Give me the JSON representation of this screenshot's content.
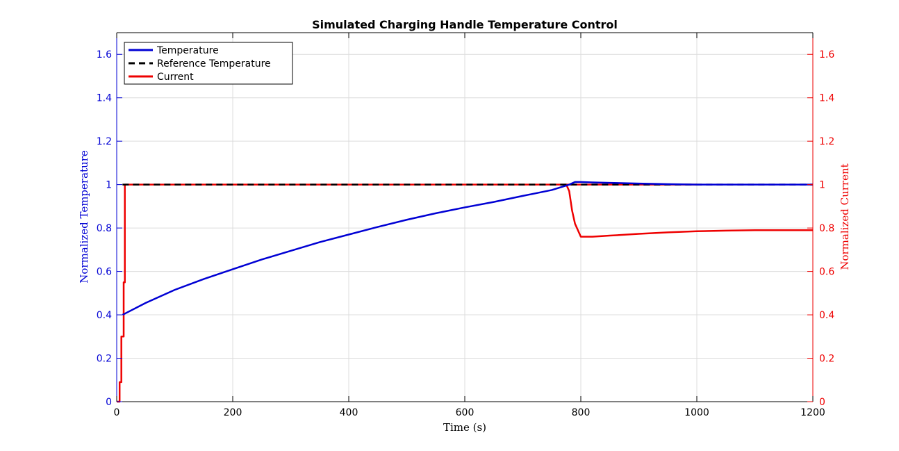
{
  "chart_data": {
    "type": "line",
    "title": "Simulated Charging Handle Temperature Control",
    "xlabel": "Time (s)",
    "ylabel_left": "Normalized Temperature",
    "ylabel_right": "Normalized Current",
    "xlim": [
      0,
      1200
    ],
    "ylim_left": [
      0,
      1.7
    ],
    "ylim_right": [
      0,
      1.7
    ],
    "xticks": [
      0,
      200,
      400,
      600,
      800,
      1000,
      1200
    ],
    "xtick_labels": [
      "0",
      "200",
      "400",
      "600",
      "800",
      "1000",
      "1200"
    ],
    "yticks_left": [
      0,
      0.2,
      0.4,
      0.6,
      0.8,
      1,
      1.2,
      1.4,
      1.6
    ],
    "ytick_labels_left": [
      "0",
      "0.2",
      "0.4",
      "0.6",
      "0.8",
      "1",
      "1.2",
      "1.4",
      "1.6"
    ],
    "yticks_right": [
      0,
      0.2,
      0.4,
      0.6,
      0.8,
      1,
      1.2,
      1.4,
      1.6
    ],
    "ytick_labels_right": [
      "0",
      "0.2",
      "0.4",
      "0.6",
      "0.8",
      "1",
      "1.2",
      "1.4",
      "1.6"
    ],
    "grid": true,
    "legend_position": "top-left",
    "series": [
      {
        "name": "Temperature",
        "axis": "left",
        "color": "#0000d4",
        "style": "solid",
        "x": [
          10,
          50,
          100,
          150,
          200,
          250,
          300,
          350,
          400,
          450,
          500,
          550,
          600,
          650,
          700,
          750,
          780,
          790,
          800,
          820,
          850,
          900,
          950,
          1000,
          1100,
          1200
        ],
        "y": [
          0.4,
          0.455,
          0.515,
          0.565,
          0.61,
          0.655,
          0.695,
          0.735,
          0.77,
          0.805,
          0.838,
          0.868,
          0.895,
          0.92,
          0.948,
          0.975,
          1.0,
          1.012,
          1.012,
          1.01,
          1.008,
          1.005,
          1.002,
          1.0,
          1.0,
          1.0
        ]
      },
      {
        "name": "Reference Temperature",
        "axis": "left",
        "color": "#000000",
        "style": "dashed",
        "x": [
          10,
          1200
        ],
        "y": [
          1.0,
          1.0
        ]
      },
      {
        "name": "Current",
        "axis": "right",
        "color": "#ee0000",
        "style": "solid",
        "x": [
          0,
          5,
          5,
          8,
          8,
          12,
          12,
          14,
          14,
          1000
        ],
        "y": [
          0,
          0,
          0.09,
          0.09,
          0.3,
          0.3,
          0.55,
          0.55,
          1.0,
          1.0
        ],
        "x2": [
          775,
          780,
          785,
          790,
          800,
          820,
          850,
          900,
          950,
          1000,
          1050,
          1100,
          1200
        ],
        "y2": [
          1.0,
          0.97,
          0.88,
          0.82,
          0.76,
          0.76,
          0.765,
          0.773,
          0.78,
          0.785,
          0.788,
          0.79,
          0.79
        ]
      }
    ]
  }
}
